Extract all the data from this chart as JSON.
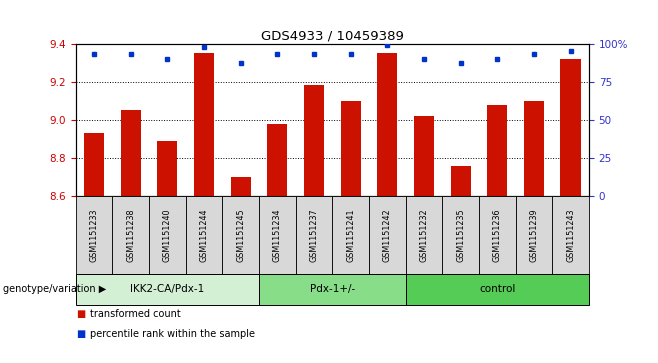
{
  "title": "GDS4933 / 10459389",
  "samples": [
    "GSM1151233",
    "GSM1151238",
    "GSM1151240",
    "GSM1151244",
    "GSM1151245",
    "GSM1151234",
    "GSM1151237",
    "GSM1151241",
    "GSM1151242",
    "GSM1151232",
    "GSM1151235",
    "GSM1151236",
    "GSM1151239",
    "GSM1151243"
  ],
  "bar_values": [
    8.93,
    9.05,
    8.89,
    9.35,
    8.7,
    8.98,
    9.18,
    9.1,
    9.35,
    9.02,
    8.76,
    9.08,
    9.1,
    9.32
  ],
  "percentile_values": [
    93,
    93,
    90,
    98,
    87,
    93,
    93,
    93,
    99,
    90,
    87,
    90,
    93,
    95
  ],
  "ylim_left": [
    8.6,
    9.4
  ],
  "ylim_right": [
    0,
    100
  ],
  "yticks_left": [
    8.6,
    8.8,
    9.0,
    9.2,
    9.4
  ],
  "yticks_right": [
    0,
    25,
    50,
    75,
    100
  ],
  "ytick_labels_right": [
    "0",
    "25",
    "50",
    "75",
    "100%"
  ],
  "groups": [
    {
      "label": "IKK2-CA/Pdx-1",
      "start": 0,
      "end": 5,
      "color": "#d4f0d4"
    },
    {
      "label": "Pdx-1+/-",
      "start": 5,
      "end": 9,
      "color": "#88dd88"
    },
    {
      "label": "control",
      "start": 9,
      "end": 14,
      "color": "#55cc55"
    }
  ],
  "bar_color": "#cc1100",
  "dot_color": "#0033cc",
  "bar_width": 0.55,
  "genotype_label": "genotype/variation",
  "legend_bar_label": "transformed count",
  "legend_dot_label": "percentile rank within the sample",
  "tick_color_left": "#cc0000",
  "tick_color_right": "#3333cc",
  "sample_cell_color": "#d8d8d8",
  "bg_color": "#ffffff"
}
